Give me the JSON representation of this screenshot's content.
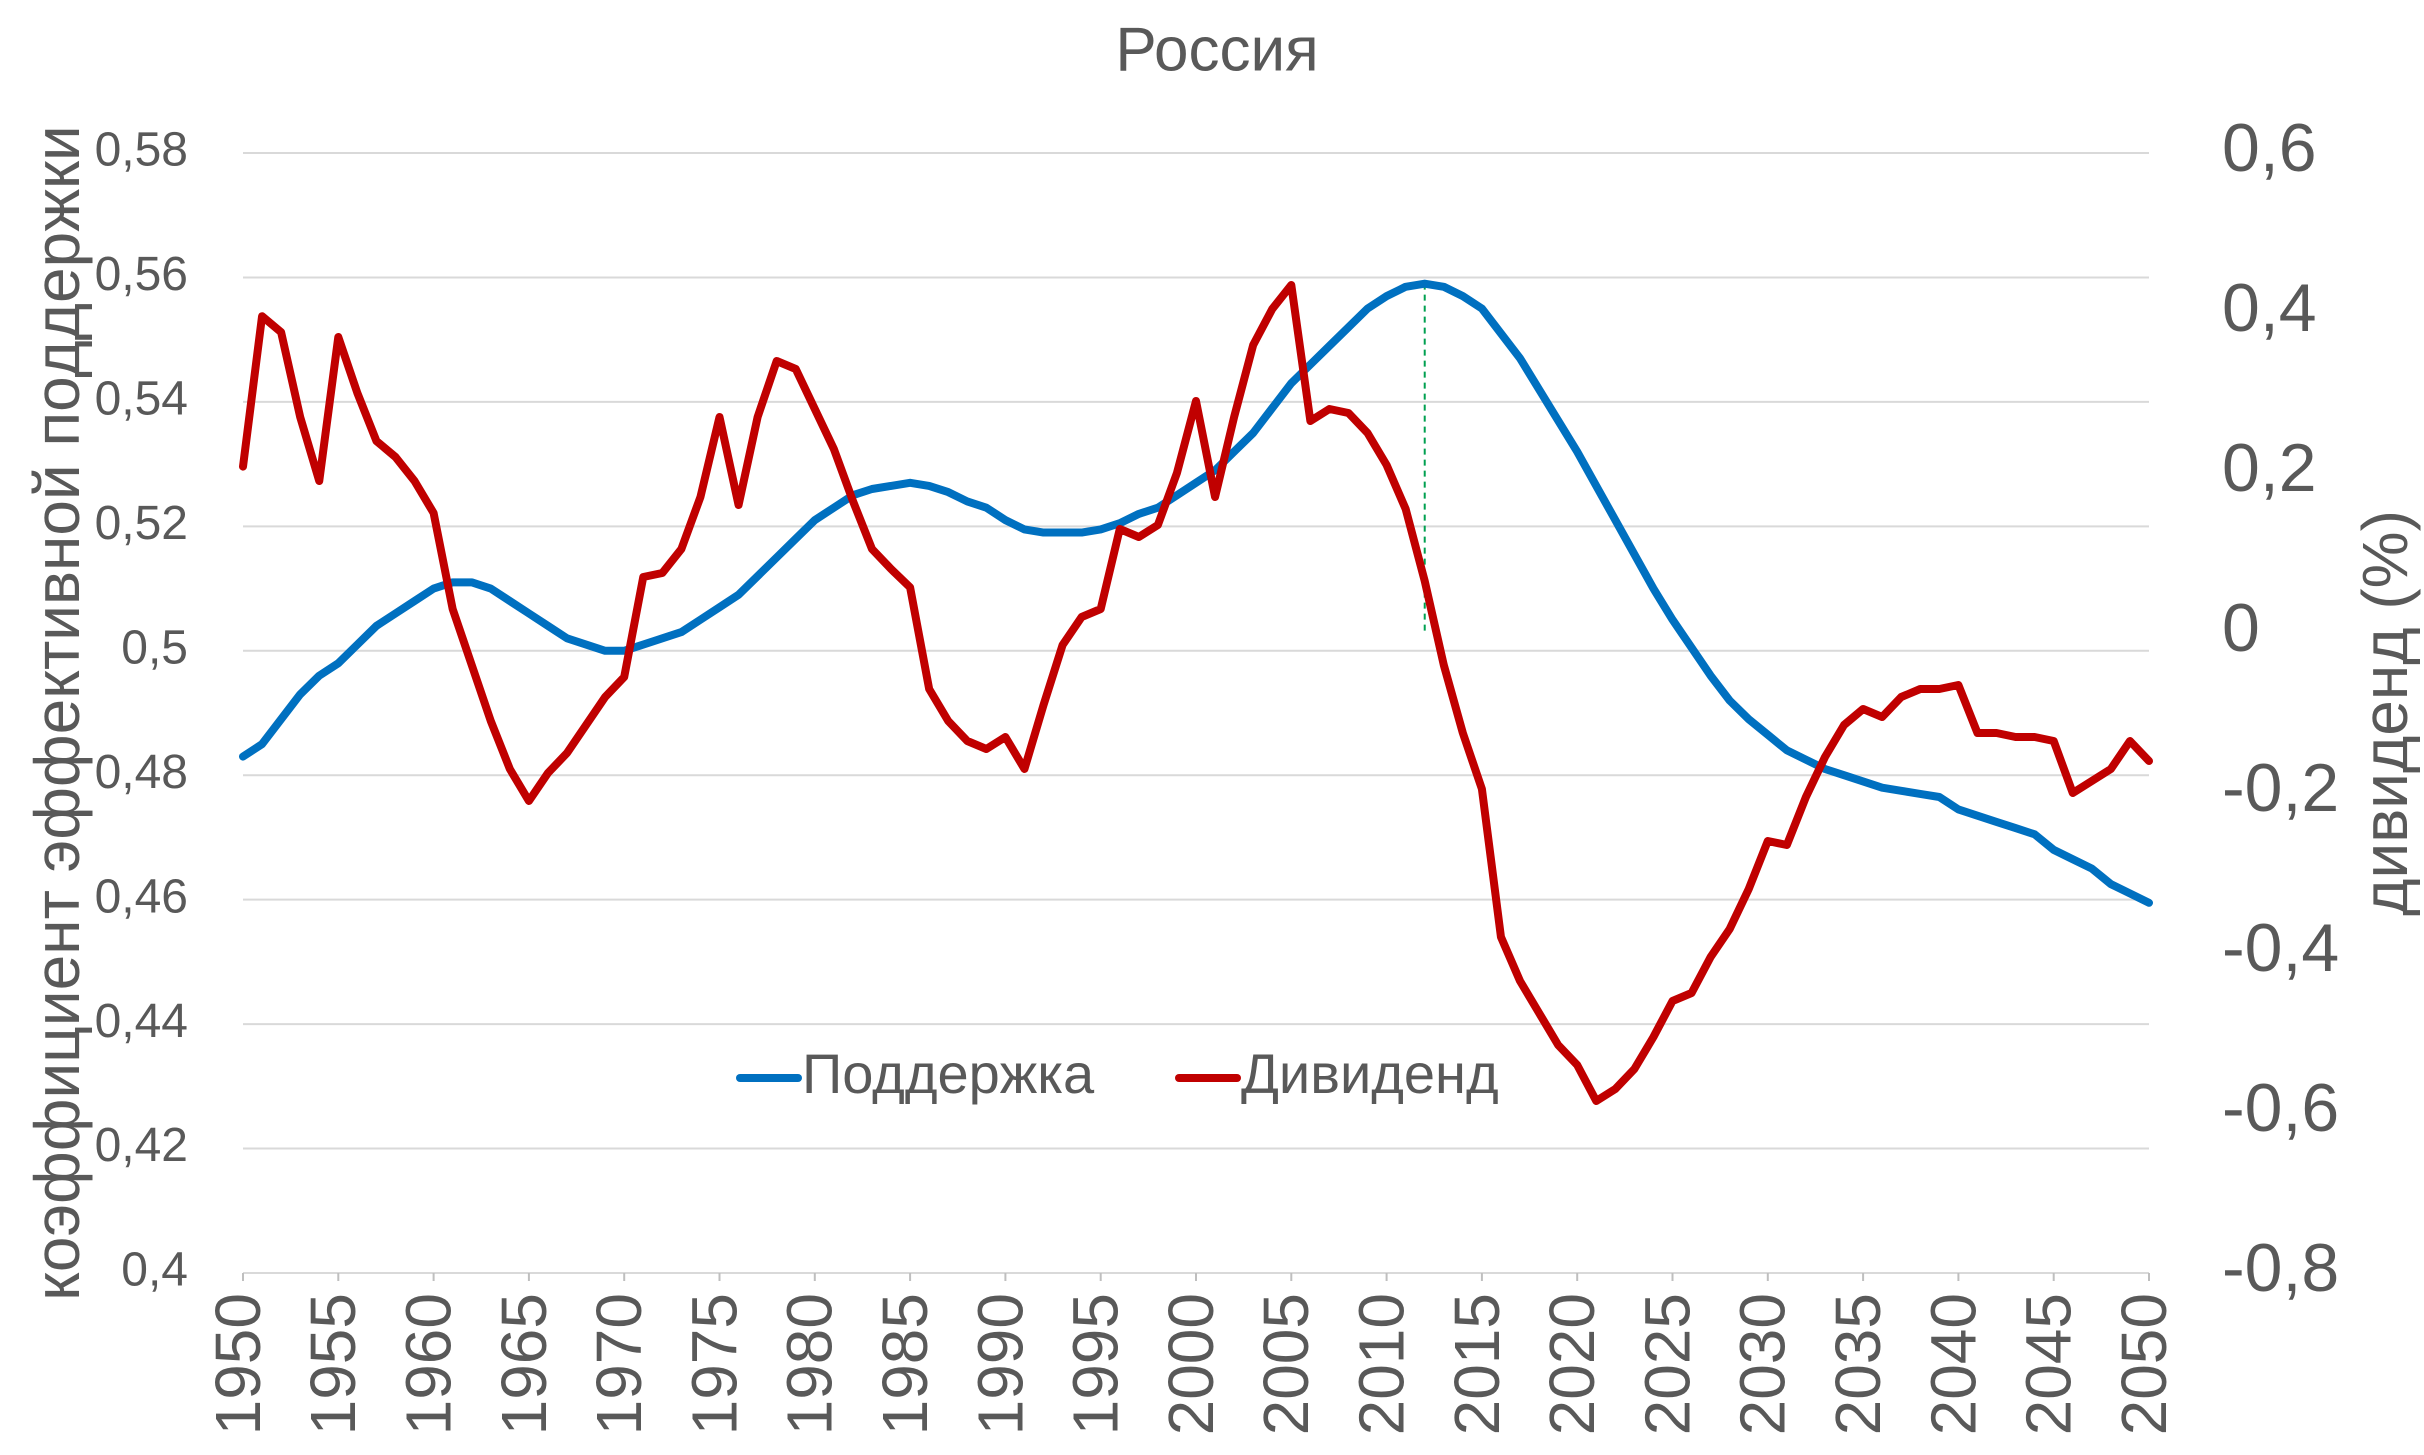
{
  "chart_data": {
    "type": "line",
    "title": "Россия",
    "ylabel": "коэффициент эффективной поддержки",
    "y2label": "дивиденд (%)",
    "x": [
      1950,
      1951,
      1952,
      1953,
      1954,
      1955,
      1956,
      1957,
      1958,
      1959,
      1960,
      1961,
      1962,
      1963,
      1964,
      1965,
      1966,
      1967,
      1968,
      1969,
      1970,
      1971,
      1972,
      1973,
      1974,
      1975,
      1976,
      1977,
      1978,
      1979,
      1980,
      1981,
      1982,
      1983,
      1984,
      1985,
      1986,
      1987,
      1988,
      1989,
      1990,
      1991,
      1992,
      1993,
      1994,
      1995,
      1996,
      1997,
      1998,
      1999,
      2000,
      2001,
      2002,
      2003,
      2004,
      2005,
      2006,
      2007,
      2008,
      2009,
      2010,
      2011,
      2012,
      2013,
      2014,
      2015,
      2016,
      2017,
      2018,
      2019,
      2020,
      2021,
      2022,
      2023,
      2024,
      2025,
      2026,
      2027,
      2028,
      2029,
      2030,
      2031,
      2032,
      2033,
      2034,
      2035,
      2036,
      2037,
      2038,
      2039,
      2040,
      2041,
      2042,
      2043,
      2044,
      2045,
      2046,
      2047,
      2048,
      2049,
      2050
    ],
    "xlim": [
      1950,
      2050
    ],
    "xticks": [
      1950,
      1955,
      1960,
      1965,
      1970,
      1975,
      1980,
      1985,
      1990,
      1995,
      2000,
      2005,
      2010,
      2015,
      2020,
      2025,
      2030,
      2035,
      2040,
      2045,
      2050
    ],
    "ylim": [
      0.4,
      0.58
    ],
    "yticks": [
      {
        "value": 0.4,
        "label": "0,4"
      },
      {
        "value": 0.42,
        "label": "0,42"
      },
      {
        "value": 0.44,
        "label": "0,44"
      },
      {
        "value": 0.46,
        "label": "0,46"
      },
      {
        "value": 0.48,
        "label": "0,48"
      },
      {
        "value": 0.5,
        "label": "0,5"
      },
      {
        "value": 0.52,
        "label": "0,52"
      },
      {
        "value": 0.54,
        "label": "0,54"
      },
      {
        "value": 0.56,
        "label": "0,56"
      },
      {
        "value": 0.58,
        "label": "0,58"
      }
    ],
    "y2lim": [
      -0.8,
      0.6
    ],
    "y2ticks": [
      {
        "value": -0.8,
        "label": "-0,8"
      },
      {
        "value": -0.6,
        "label": "-0,6"
      },
      {
        "value": -0.4,
        "label": "-0,4"
      },
      {
        "value": -0.2,
        "label": "-0,2"
      },
      0,
      {
        "value": 0.2,
        "label": "0,2"
      },
      {
        "value": 0.4,
        "label": "0,4"
      },
      {
        "value": 0.6,
        "label": "0,6"
      }
    ],
    "grid": true,
    "legend": "bottom",
    "series": [
      {
        "name": "Поддержка",
        "color": "#0070c0",
        "values": [
          0.483,
          0.485,
          0.489,
          0.493,
          0.496,
          0.498,
          0.501,
          0.504,
          0.506,
          0.508,
          0.51,
          0.511,
          0.511,
          0.51,
          0.508,
          0.506,
          0.504,
          0.502,
          0.501,
          0.5,
          0.5,
          0.501,
          0.502,
          0.503,
          0.505,
          0.507,
          0.509,
          0.512,
          0.515,
          0.518,
          0.521,
          0.523,
          0.525,
          0.526,
          0.5265,
          0.527,
          0.5265,
          0.5255,
          0.524,
          0.523,
          0.521,
          0.5195,
          0.519,
          0.519,
          0.519,
          0.5195,
          0.5205,
          0.522,
          0.523,
          0.525,
          0.527,
          0.529,
          0.532,
          0.535,
          0.539,
          0.543,
          0.546,
          0.549,
          0.552,
          0.555,
          0.557,
          0.5585,
          0.559,
          0.5585,
          0.557,
          0.555,
          0.551,
          0.547,
          0.542,
          0.537,
          0.532,
          0.5265,
          0.521,
          0.5155,
          0.51,
          0.505,
          0.5005,
          0.496,
          0.492,
          0.489,
          0.4865,
          0.484,
          0.4825,
          0.481,
          0.48,
          0.479,
          0.478,
          0.4775,
          0.477,
          0.4765,
          0.4745,
          0.4735,
          0.4725,
          0.4715,
          0.4705,
          0.468,
          0.4665,
          0.465,
          0.4625,
          0.461,
          0.4595
        ]
      },
      {
        "name": "Дивиденд",
        "color": "#c00000",
        "axis": "y2",
        "values": [
          0.208,
          0.396,
          0.376,
          0.27,
          0.19,
          0.37,
          0.3,
          0.24,
          0.22,
          0.19,
          0.15,
          0.03,
          -0.04,
          -0.11,
          -0.17,
          -0.21,
          -0.175,
          -0.15,
          -0.115,
          -0.08,
          -0.055,
          0.07,
          0.075,
          0.105,
          0.17,
          0.27,
          0.16,
          0.27,
          0.34,
          0.33,
          0.28,
          0.23,
          0.165,
          0.105,
          0.08,
          0.057,
          -0.07,
          -0.11,
          -0.135,
          -0.145,
          -0.13,
          -0.17,
          -0.09,
          -0.015,
          0.02,
          0.03,
          0.13,
          0.12,
          0.135,
          0.2,
          0.29,
          0.17,
          0.27,
          0.36,
          0.405,
          0.435,
          0.265,
          0.28,
          0.275,
          0.25,
          0.21,
          0.155,
          0.065,
          -0.04,
          -0.125,
          -0.195,
          -0.38,
          -0.435,
          -0.475,
          -0.515,
          -0.54,
          -0.585,
          -0.57,
          -0.545,
          -0.505,
          -0.46,
          -0.45,
          -0.405,
          -0.37,
          -0.32,
          -0.26,
          -0.265,
          -0.205,
          -0.155,
          -0.115,
          -0.095,
          -0.105,
          -0.08,
          -0.07,
          -0.07,
          -0.065,
          -0.125,
          -0.125,
          -0.13,
          -0.13,
          -0.135,
          -0.2,
          -0.185,
          -0.17,
          -0.135,
          -0.16
        ]
      }
    ]
  }
}
